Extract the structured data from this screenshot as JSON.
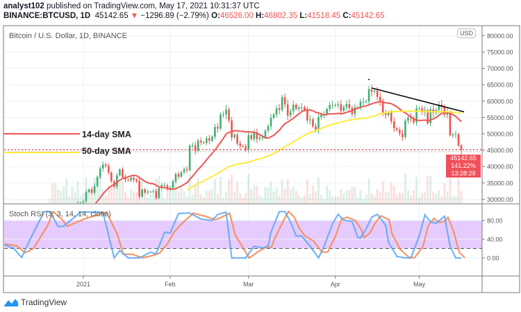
{
  "header": {
    "author": "analyst102",
    "published": "published on TradingView.com, May 17, 2021 10:31:37 UTC",
    "symbol": "BINANCE:BTCUSD, 1D",
    "last": "45142.65",
    "change": "−1296.89 (−2.79%)",
    "o_label": "O:",
    "o": "46526.00",
    "h_label": "H:",
    "h": "46802.35",
    "l_label": "L:",
    "l": "41518.45",
    "c_label": "C:",
    "c": "45142.65"
  },
  "pane_title": "Bitcoin / U.S. Dollar, 1D, BINANCE",
  "currency_badge": "USD",
  "price_badge": {
    "price": "45142.65",
    "percent": "141.22%",
    "countdown": "13:28:29"
  },
  "annotations": {
    "sma14_label": "14-day SMA",
    "sma50_label": "50-day SMA"
  },
  "stoch_title": "Stoch RSI (3, 3, 14, 14, close)",
  "brand": "TradingView",
  "colors": {
    "up": "#3fae72",
    "down": "#ef5350",
    "sma14": "#f05454",
    "sma50": "#ffeb3b",
    "stoch_k": "#5aa7f5",
    "stoch_d": "#f58c55",
    "band": "#e6cbff",
    "trendline": "#000000"
  },
  "chart_data": [
    {
      "type": "candlestick",
      "title": "Bitcoin / U.S. Dollar, 1D, BINANCE",
      "y_ticks": [
        "80000.00",
        "75000.00",
        "70000.00",
        "65000.00",
        "60000.00",
        "55000.00",
        "50000.00",
        "45000.00",
        "40000.00",
        "35000.00",
        "30000.00"
      ],
      "ylim": [
        28800,
        83000
      ],
      "x_ticks": [
        "2021",
        "Feb",
        "Mar",
        "Apr",
        "May"
      ],
      "x_tick_dates": [
        "2021-01-01",
        "2021-02-01",
        "2021-03-01",
        "2021-04-01",
        "2021-05-01"
      ],
      "start_date": "2020-12-20",
      "close": [
        23800,
        22800,
        23800,
        23200,
        23700,
        24700,
        26500,
        26300,
        27100,
        27400,
        28900,
        29000,
        29400,
        32200,
        33000,
        32000,
        34000,
        36800,
        39400,
        40600,
        40200,
        38200,
        35500,
        33900,
        37300,
        39100,
        36800,
        36000,
        35800,
        36600,
        36000,
        35500,
        30800,
        33000,
        32100,
        32300,
        32300,
        32500,
        30400,
        33400,
        34300,
        34300,
        33100,
        33500,
        35500,
        37700,
        36900,
        38300,
        39200,
        38900,
        46400,
        46500,
        44800,
        47900,
        47400,
        47200,
        48600,
        47900,
        49100,
        52100,
        51600,
        55900,
        55900,
        57400,
        54100,
        48900,
        49700,
        47000,
        46300,
        46200,
        45200,
        49600,
        48400,
        50400,
        48400,
        48800,
        48900,
        51000,
        52300,
        54900,
        55900,
        57800,
        57300,
        61200,
        59000,
        55600,
        56900,
        58900,
        57600,
        58000,
        58100,
        57300,
        54100,
        54400,
        52300,
        51300,
        55100,
        55800,
        55800,
        57600,
        58800,
        58800,
        58700,
        59000,
        57100,
        58200,
        59100,
        57900,
        56000,
        58100,
        58100,
        59800,
        59800,
        59900,
        63600,
        62900,
        63200,
        61300,
        60000,
        56200,
        55700,
        56500,
        53800,
        51700,
        51200,
        50100,
        49000,
        54000,
        55000,
        54800,
        53500,
        57700,
        57800,
        56600,
        57200,
        53200,
        57500,
        56400,
        57300,
        58900,
        58200,
        55800,
        56700,
        49500,
        49700,
        49900,
        46438,
        45142.65
      ],
      "last_candle": {
        "open": 46526.0,
        "high": 46802.35,
        "low": 41518.45,
        "close": 45142.65
      },
      "sma_periods": [
        14,
        50
      ],
      "trendline": [
        [
          "2021-04-14",
          64000
        ],
        [
          "2021-05-17",
          56700
        ]
      ],
      "marker": [
        "2021-04-13",
        66600
      ],
      "grid": true
    },
    {
      "type": "line",
      "title": "Stoch RSI (3, 3, 14, 14, close)",
      "y_ticks": [
        "80.00",
        "40.00",
        "0.00"
      ],
      "bands": [
        20,
        80
      ],
      "ylim": [
        0,
        100
      ],
      "k": [
        [
          "2020-12-03",
          30
        ],
        [
          "2020-12-07",
          21
        ],
        [
          "2020-12-10",
          1
        ],
        [
          "2020-12-13",
          40
        ],
        [
          "2020-12-18",
          99
        ],
        [
          "2020-12-20",
          99
        ],
        [
          "2020-12-23",
          67
        ],
        [
          "2020-12-25",
          68
        ],
        [
          "2020-12-31",
          98
        ],
        [
          "2021-01-08",
          98
        ],
        [
          "2021-01-12",
          0
        ],
        [
          "2021-01-14",
          16
        ],
        [
          "2021-01-17",
          0
        ],
        [
          "2021-01-21",
          0
        ],
        [
          "2021-01-25",
          12
        ],
        [
          "2021-01-27",
          9
        ],
        [
          "2021-01-30",
          55
        ],
        [
          "2021-02-01",
          53
        ],
        [
          "2021-02-04",
          95
        ],
        [
          "2021-02-08",
          96
        ],
        [
          "2021-02-12",
          83
        ],
        [
          "2021-02-16",
          80
        ],
        [
          "2021-02-18",
          93
        ],
        [
          "2021-02-21",
          98
        ],
        [
          "2021-02-23",
          0
        ],
        [
          "2021-02-28",
          0
        ],
        [
          "2021-03-03",
          25
        ],
        [
          "2021-03-06",
          21
        ],
        [
          "2021-03-08",
          25
        ],
        [
          "2021-03-09",
          55
        ],
        [
          "2021-03-12",
          99
        ],
        [
          "2021-03-14",
          99
        ],
        [
          "2021-03-16",
          77
        ],
        [
          "2021-03-18",
          47
        ],
        [
          "2021-03-20",
          47
        ],
        [
          "2021-03-23",
          25
        ],
        [
          "2021-03-26",
          0
        ],
        [
          "2021-03-28",
          25
        ],
        [
          "2021-03-31",
          73
        ],
        [
          "2021-04-02",
          93
        ],
        [
          "2021-04-04",
          81
        ],
        [
          "2021-04-07",
          78
        ],
        [
          "2021-04-09",
          44
        ],
        [
          "2021-04-10",
          43
        ],
        [
          "2021-04-12",
          62
        ],
        [
          "2021-04-14",
          87
        ],
        [
          "2021-04-16",
          93
        ],
        [
          "2021-04-19",
          70
        ],
        [
          "2021-04-20",
          33
        ],
        [
          "2021-04-23",
          3
        ],
        [
          "2021-04-26",
          0
        ],
        [
          "2021-04-28",
          0
        ],
        [
          "2021-05-01",
          47
        ],
        [
          "2021-05-03",
          92
        ],
        [
          "2021-05-05",
          77
        ],
        [
          "2021-05-07",
          74
        ],
        [
          "2021-05-09",
          84
        ],
        [
          "2021-05-10",
          89
        ],
        [
          "2021-05-12",
          25
        ],
        [
          "2021-05-14",
          0
        ],
        [
          "2021-05-16",
          0
        ]
      ]
    }
  ]
}
